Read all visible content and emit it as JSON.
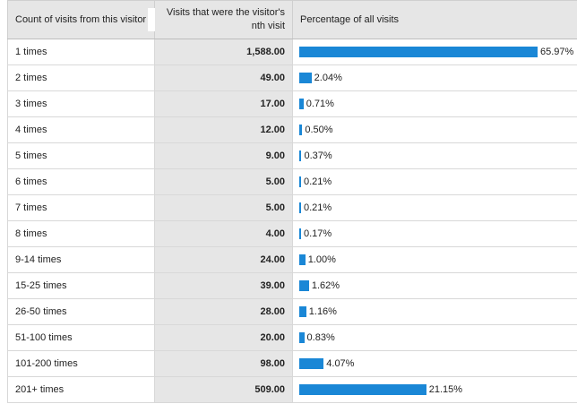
{
  "headers": {
    "count": "Count of visits from this visitor",
    "visits": "Visits that were the visitor's nth visit",
    "percentage": "Percentage of all visits"
  },
  "bar_color": "#1a87d6",
  "rows": [
    {
      "label": "1 times",
      "visits": "1,588.00",
      "pct_text": "65.97%",
      "pct": 65.97
    },
    {
      "label": "2 times",
      "visits": "49.00",
      "pct_text": "2.04%",
      "pct": 2.04
    },
    {
      "label": "3 times",
      "visits": "17.00",
      "pct_text": "0.71%",
      "pct": 0.71
    },
    {
      "label": "4 times",
      "visits": "12.00",
      "pct_text": "0.50%",
      "pct": 0.5
    },
    {
      "label": "5 times",
      "visits": "9.00",
      "pct_text": "0.37%",
      "pct": 0.37
    },
    {
      "label": "6 times",
      "visits": "5.00",
      "pct_text": "0.21%",
      "pct": 0.21
    },
    {
      "label": "7 times",
      "visits": "5.00",
      "pct_text": "0.21%",
      "pct": 0.21
    },
    {
      "label": "8 times",
      "visits": "4.00",
      "pct_text": "0.17%",
      "pct": 0.17
    },
    {
      "label": "9-14 times",
      "visits": "24.00",
      "pct_text": "1.00%",
      "pct": 1.0
    },
    {
      "label": "15-25 times",
      "visits": "39.00",
      "pct_text": "1.62%",
      "pct": 1.62
    },
    {
      "label": "26-50 times",
      "visits": "28.00",
      "pct_text": "1.16%",
      "pct": 1.16
    },
    {
      "label": "51-100 times",
      "visits": "20.00",
      "pct_text": "0.83%",
      "pct": 0.83
    },
    {
      "label": "101-200 times",
      "visits": "98.00",
      "pct_text": "4.07%",
      "pct": 4.07
    },
    {
      "label": "201+ times",
      "visits": "509.00",
      "pct_text": "21.15%",
      "pct": 21.15
    }
  ]
}
